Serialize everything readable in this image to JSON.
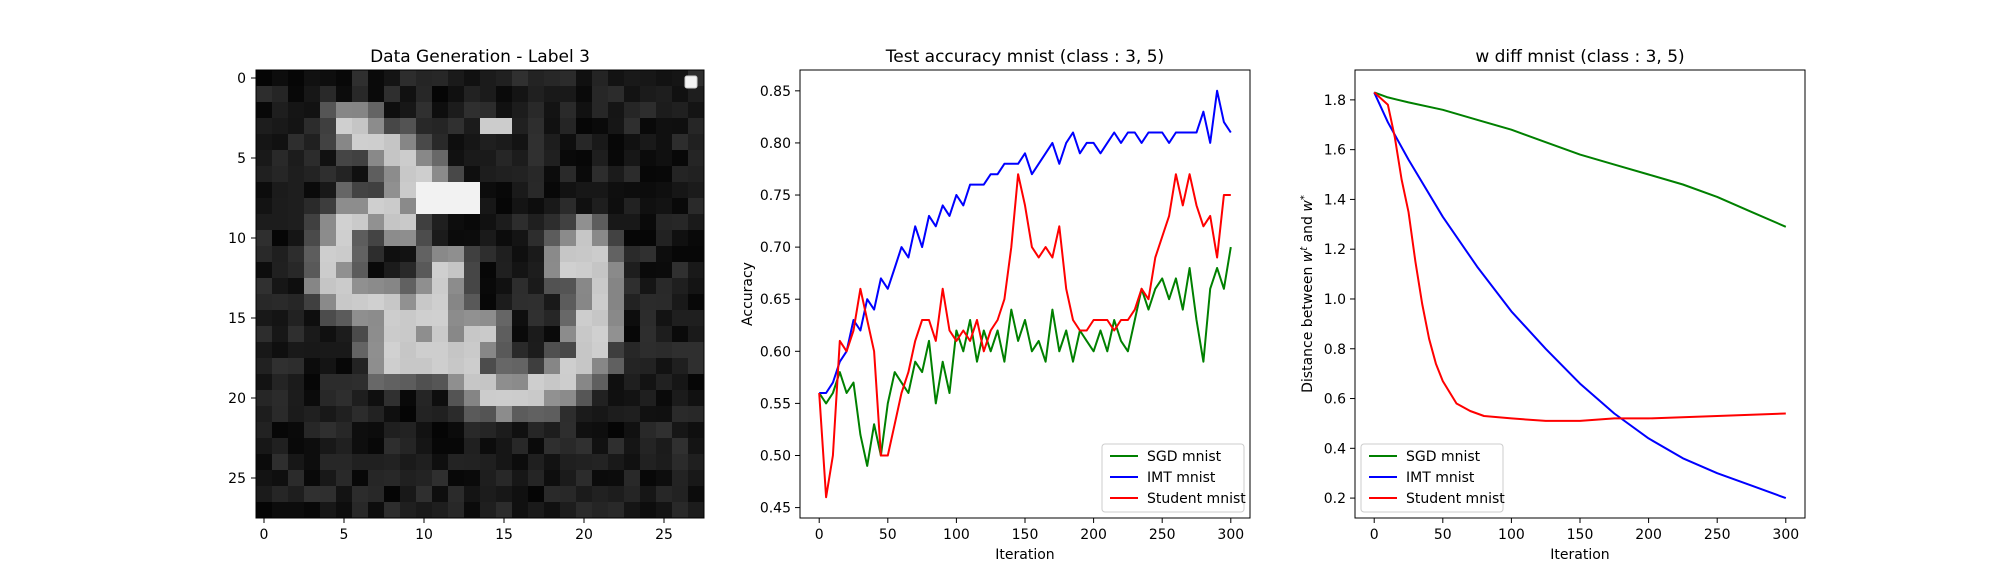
{
  "chart_data": [
    {
      "type": "heatmap",
      "title": "Data Generation - Label 3",
      "colormap": "gray",
      "x_ticks": [
        0,
        5,
        10,
        15,
        20,
        25
      ],
      "y_ticks": [
        0,
        5,
        10,
        15,
        20,
        25
      ],
      "grid_size": 28,
      "legend": "upper right, empty box"
    },
    {
      "type": "line",
      "title": "Test accuracy mnist (class : 3, 5)",
      "xlabel": "Iteration",
      "ylabel": "Accuracy",
      "xlim": [
        -14,
        314
      ],
      "ylim": [
        0.44,
        0.87
      ],
      "x_ticks": [
        0,
        50,
        100,
        150,
        200,
        250,
        300
      ],
      "y_ticks": [
        0.45,
        0.5,
        0.55,
        0.6,
        0.65,
        0.7,
        0.75,
        0.8,
        0.85
      ],
      "legend_position": "lower right",
      "series": [
        {
          "name": "SGD mnist",
          "color": "#008000",
          "x": [
            0,
            5,
            10,
            15,
            20,
            25,
            30,
            35,
            40,
            45,
            50,
            55,
            60,
            65,
            70,
            75,
            80,
            85,
            90,
            95,
            100,
            105,
            110,
            115,
            120,
            125,
            130,
            135,
            140,
            145,
            150,
            155,
            160,
            165,
            170,
            175,
            180,
            185,
            190,
            195,
            200,
            205,
            210,
            215,
            220,
            225,
            230,
            235,
            240,
            245,
            250,
            255,
            260,
            265,
            270,
            275,
            280,
            285,
            290,
            295,
            300
          ],
          "y": [
            0.56,
            0.55,
            0.56,
            0.58,
            0.56,
            0.57,
            0.52,
            0.49,
            0.53,
            0.5,
            0.55,
            0.58,
            0.57,
            0.56,
            0.59,
            0.58,
            0.61,
            0.55,
            0.59,
            0.56,
            0.62,
            0.6,
            0.63,
            0.59,
            0.62,
            0.6,
            0.62,
            0.59,
            0.64,
            0.61,
            0.63,
            0.6,
            0.61,
            0.59,
            0.64,
            0.6,
            0.62,
            0.59,
            0.62,
            0.61,
            0.6,
            0.62,
            0.6,
            0.63,
            0.61,
            0.6,
            0.63,
            0.66,
            0.64,
            0.66,
            0.67,
            0.65,
            0.67,
            0.64,
            0.68,
            0.63,
            0.59,
            0.66,
            0.68,
            0.66,
            0.7
          ]
        },
        {
          "name": "IMT mnist",
          "color": "#0000ff",
          "x": [
            0,
            5,
            10,
            15,
            20,
            25,
            30,
            35,
            40,
            45,
            50,
            55,
            60,
            65,
            70,
            75,
            80,
            85,
            90,
            95,
            100,
            105,
            110,
            115,
            120,
            125,
            130,
            135,
            140,
            145,
            150,
            155,
            160,
            165,
            170,
            175,
            180,
            185,
            190,
            195,
            200,
            205,
            210,
            215,
            220,
            225,
            230,
            235,
            240,
            245,
            250,
            255,
            260,
            265,
            270,
            275,
            280,
            285,
            290,
            295,
            300
          ],
          "y": [
            0.56,
            0.56,
            0.57,
            0.59,
            0.6,
            0.63,
            0.62,
            0.65,
            0.64,
            0.67,
            0.66,
            0.68,
            0.7,
            0.69,
            0.72,
            0.7,
            0.73,
            0.72,
            0.74,
            0.73,
            0.75,
            0.74,
            0.76,
            0.76,
            0.76,
            0.77,
            0.77,
            0.78,
            0.78,
            0.78,
            0.79,
            0.77,
            0.78,
            0.79,
            0.8,
            0.78,
            0.8,
            0.81,
            0.79,
            0.8,
            0.8,
            0.79,
            0.8,
            0.81,
            0.8,
            0.81,
            0.81,
            0.8,
            0.81,
            0.81,
            0.81,
            0.8,
            0.81,
            0.81,
            0.81,
            0.81,
            0.83,
            0.8,
            0.85,
            0.82,
            0.81
          ]
        },
        {
          "name": "Student mnist",
          "color": "#ff0000",
          "x": [
            0,
            5,
            10,
            15,
            20,
            25,
            30,
            35,
            40,
            45,
            50,
            55,
            60,
            65,
            70,
            75,
            80,
            85,
            90,
            95,
            100,
            105,
            110,
            115,
            120,
            125,
            130,
            135,
            140,
            145,
            150,
            155,
            160,
            165,
            170,
            175,
            180,
            185,
            190,
            195,
            200,
            205,
            210,
            215,
            220,
            225,
            230,
            235,
            240,
            245,
            250,
            255,
            260,
            265,
            270,
            275,
            280,
            285,
            290,
            295,
            300
          ],
          "y": [
            0.56,
            0.46,
            0.5,
            0.61,
            0.6,
            0.62,
            0.66,
            0.63,
            0.6,
            0.5,
            0.5,
            0.53,
            0.56,
            0.58,
            0.61,
            0.63,
            0.63,
            0.61,
            0.66,
            0.62,
            0.61,
            0.62,
            0.61,
            0.63,
            0.6,
            0.62,
            0.63,
            0.65,
            0.7,
            0.77,
            0.74,
            0.7,
            0.69,
            0.7,
            0.69,
            0.72,
            0.66,
            0.63,
            0.62,
            0.62,
            0.63,
            0.63,
            0.63,
            0.62,
            0.63,
            0.63,
            0.64,
            0.66,
            0.65,
            0.69,
            0.71,
            0.73,
            0.77,
            0.74,
            0.77,
            0.74,
            0.72,
            0.73,
            0.69,
            0.75,
            0.75
          ]
        }
      ]
    },
    {
      "type": "line",
      "title": "w diff mnist (class : 3, 5)",
      "xlabel": "Iteration",
      "ylabel": "Distance between $w^t$ and $w^*$",
      "xlim": [
        -14,
        314
      ],
      "ylim": [
        0.12,
        1.92
      ],
      "x_ticks": [
        0,
        50,
        100,
        150,
        200,
        250,
        300
      ],
      "y_ticks": [
        0.2,
        0.4,
        0.6,
        0.8,
        1.0,
        1.2,
        1.4,
        1.6,
        1.8
      ],
      "legend_position": "lower left",
      "series": [
        {
          "name": "SGD mnist",
          "color": "#008000",
          "x": [
            0,
            10,
            25,
            50,
            75,
            100,
            125,
            150,
            175,
            200,
            225,
            250,
            275,
            300
          ],
          "y": [
            1.83,
            1.81,
            1.79,
            1.76,
            1.72,
            1.68,
            1.63,
            1.58,
            1.54,
            1.5,
            1.46,
            1.41,
            1.35,
            1.29
          ]
        },
        {
          "name": "IMT mnist",
          "color": "#0000ff",
          "x": [
            0,
            10,
            25,
            50,
            75,
            100,
            125,
            150,
            175,
            200,
            225,
            250,
            275,
            300
          ],
          "y": [
            1.83,
            1.71,
            1.56,
            1.33,
            1.13,
            0.95,
            0.8,
            0.66,
            0.54,
            0.44,
            0.36,
            0.3,
            0.25,
            0.2
          ]
        },
        {
          "name": "Student mnist",
          "color": "#ff0000",
          "x": [
            0,
            10,
            15,
            20,
            25,
            30,
            35,
            40,
            45,
            50,
            60,
            70,
            80,
            100,
            125,
            150,
            175,
            200,
            250,
            300
          ],
          "y": [
            1.83,
            1.78,
            1.65,
            1.48,
            1.35,
            1.15,
            0.98,
            0.84,
            0.74,
            0.67,
            0.58,
            0.55,
            0.53,
            0.52,
            0.51,
            0.51,
            0.52,
            0.52,
            0.53,
            0.54
          ]
        }
      ]
    }
  ]
}
